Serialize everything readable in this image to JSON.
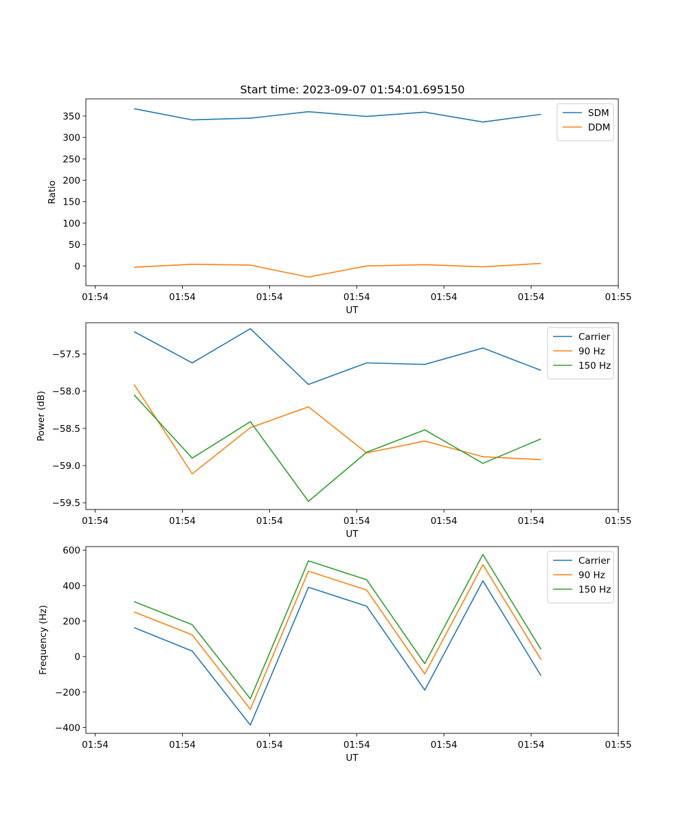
{
  "title": "Start time: 2023-09-07 01:54:01.695150",
  "colors": {
    "blue": "#1f77b4",
    "orange": "#ff7f0e",
    "green": "#2ca02c"
  },
  "chart_data": [
    {
      "type": "line",
      "xlabel": "UT",
      "ylabel": "Ratio",
      "x": [
        1,
        2,
        3,
        4,
        5,
        6,
        7,
        8
      ],
      "xlim": [
        0.17,
        9.33
      ],
      "x_ticks": [
        0.33,
        1.83,
        3.33,
        4.83,
        6.33,
        7.83,
        9.33
      ],
      "x_tick_labels": [
        "01:54",
        "01:54",
        "01:54",
        "01:54",
        "01:54",
        "01:54",
        "01:55"
      ],
      "ylim": [
        -46,
        390
      ],
      "y_ticks": [
        0,
        50,
        100,
        150,
        200,
        250,
        300,
        350
      ],
      "y_tick_labels": [
        "0",
        "50",
        "100",
        "150",
        "200",
        "250",
        "300",
        "350"
      ],
      "legend_position": "top-right",
      "series": [
        {
          "name": "SDM",
          "color": "#1f77b4",
          "values": [
            367,
            341,
            345,
            360,
            349,
            359,
            336,
            354
          ]
        },
        {
          "name": "DDM",
          "color": "#ff7f0e",
          "values": [
            -3,
            4,
            2,
            -26,
            0,
            3,
            -2,
            6
          ]
        }
      ]
    },
    {
      "type": "line",
      "xlabel": "UT",
      "ylabel": "Power (dB)",
      "x": [
        1,
        2,
        3,
        4,
        5,
        6,
        7,
        8
      ],
      "xlim": [
        0.17,
        9.33
      ],
      "x_ticks": [
        0.33,
        1.83,
        3.33,
        4.83,
        6.33,
        7.83,
        9.33
      ],
      "x_tick_labels": [
        "01:54",
        "01:54",
        "01:54",
        "01:54",
        "01:54",
        "01:54",
        "01:55"
      ],
      "ylim": [
        -59.59,
        -57.08
      ],
      "y_ticks": [
        -57.5,
        -58.0,
        -58.5,
        -59.0,
        -59.5
      ],
      "y_tick_labels": [
        "−57.5",
        "−58.0",
        "−58.5",
        "−59.0",
        "−59.5"
      ],
      "legend_position": "top-right",
      "series": [
        {
          "name": "Carrier",
          "color": "#1f77b4",
          "values": [
            -57.2,
            -57.62,
            -57.16,
            -57.91,
            -57.62,
            -57.64,
            -57.42,
            -57.72
          ]
        },
        {
          "name": "90 Hz",
          "color": "#ff7f0e",
          "values": [
            -57.91,
            -59.11,
            -58.49,
            -58.21,
            -58.83,
            -58.67,
            -58.88,
            -58.92
          ]
        },
        {
          "name": "150 Hz",
          "color": "#2ca02c",
          "values": [
            -58.05,
            -58.9,
            -58.41,
            -59.48,
            -58.82,
            -58.52,
            -58.97,
            -58.64
          ]
        }
      ]
    },
    {
      "type": "line",
      "xlabel": "UT",
      "ylabel": "Frequency (Hz)",
      "x": [
        1,
        2,
        3,
        4,
        5,
        6,
        7,
        8
      ],
      "xlim": [
        0.17,
        9.33
      ],
      "x_ticks": [
        0.33,
        1.83,
        3.33,
        4.83,
        6.33,
        7.83,
        9.33
      ],
      "x_tick_labels": [
        "01:54",
        "01:54",
        "01:54",
        "01:54",
        "01:54",
        "01:54",
        "01:55"
      ],
      "ylim": [
        -433,
        620
      ],
      "y_ticks": [
        600,
        400,
        200,
        0,
        -200,
        -400
      ],
      "y_tick_labels": [
        "600",
        "400",
        "200",
        "0",
        "−200",
        "−400"
      ],
      "legend_position": "top-right",
      "series": [
        {
          "name": "Carrier",
          "color": "#1f77b4",
          "values": [
            163,
            31,
            -386,
            391,
            284,
            -189,
            427,
            -108
          ]
        },
        {
          "name": "90 Hz",
          "color": "#ff7f0e",
          "values": [
            252,
            122,
            -297,
            481,
            375,
            -98,
            518,
            -18
          ]
        },
        {
          "name": "150 Hz",
          "color": "#2ca02c",
          "values": [
            310,
            180,
            -238,
            540,
            433,
            -40,
            576,
            40
          ]
        }
      ]
    }
  ]
}
